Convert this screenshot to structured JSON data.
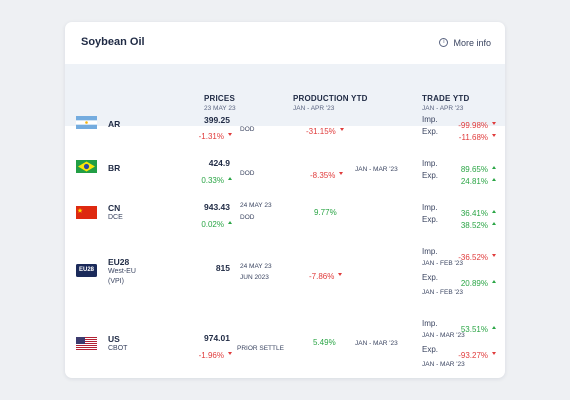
{
  "card": {
    "title": "Soybean Oil",
    "more_info": "More info"
  },
  "columns": {
    "prices": {
      "title": "PRICES",
      "sub": "23 MAY 23"
    },
    "production": {
      "title": "PRODUCTION YTD",
      "sub": "JAN - APR '23"
    },
    "trade": {
      "title": "TRADE YTD",
      "sub": "JAN - APR '23"
    }
  },
  "rows": {
    "ar": {
      "code": "AR",
      "flag_icon": "argentina-flag-icon",
      "price": "399.25",
      "change": "-1.31%",
      "price_type": "DOD",
      "production": "-31.15%",
      "imp_label": "Imp.",
      "imp": "-99.98%",
      "exp_label": "Exp.",
      "exp": "-11.68%"
    },
    "br": {
      "code": "BR",
      "flag_icon": "brazil-flag-icon",
      "price": "424.9",
      "change": "0.33%",
      "price_type": "DOD",
      "production": "-8.35%",
      "production_period": "JAN - MAR '23",
      "imp_label": "Imp.",
      "imp": "89.65%",
      "exp_label": "Exp.",
      "exp": "24.81%"
    },
    "cn": {
      "code": "CN",
      "sub": "DCE",
      "flag_icon": "china-flag-icon",
      "price": "943.43",
      "change": "0.02%",
      "date": "24 MAY 23",
      "price_type": "DOD",
      "production": "9.77%",
      "imp_label": "Imp.",
      "imp": "36.41%",
      "exp_label": "Exp.",
      "exp": "38.52%"
    },
    "eu28": {
      "code": "EU28",
      "sub1": "West-EU",
      "sub2": "(VPI)",
      "flag_icon": "eu28-badge-icon",
      "badge": "EU28",
      "price": "815",
      "date": "24 MAY 23",
      "date2": "JUN 2023",
      "production": "-7.86%",
      "imp_label": "Imp.",
      "imp": "-36.52%",
      "imp_period": "JAN - FEB '23",
      "exp_label": "Exp.",
      "exp": "20.89%",
      "exp_period": "JAN - FEB '23"
    },
    "us": {
      "code": "US",
      "sub": "CBOT",
      "flag_icon": "usa-flag-icon",
      "price": "974.01",
      "change": "-1.96%",
      "price_type": "PRIOR SETTLE",
      "production": "5.49%",
      "production_period": "JAN - MAR '23",
      "imp_label": "Imp.",
      "imp": "53.51%",
      "imp_period": "JAN - MAR '23",
      "exp_label": "Exp.",
      "exp": "-93.27%",
      "exp_period": "JAN - MAR '23"
    }
  },
  "colors": {
    "negative": "#e03b3b",
    "positive": "#2aa545",
    "header_bg": "#eef2f7",
    "text": "#1f2a44"
  }
}
